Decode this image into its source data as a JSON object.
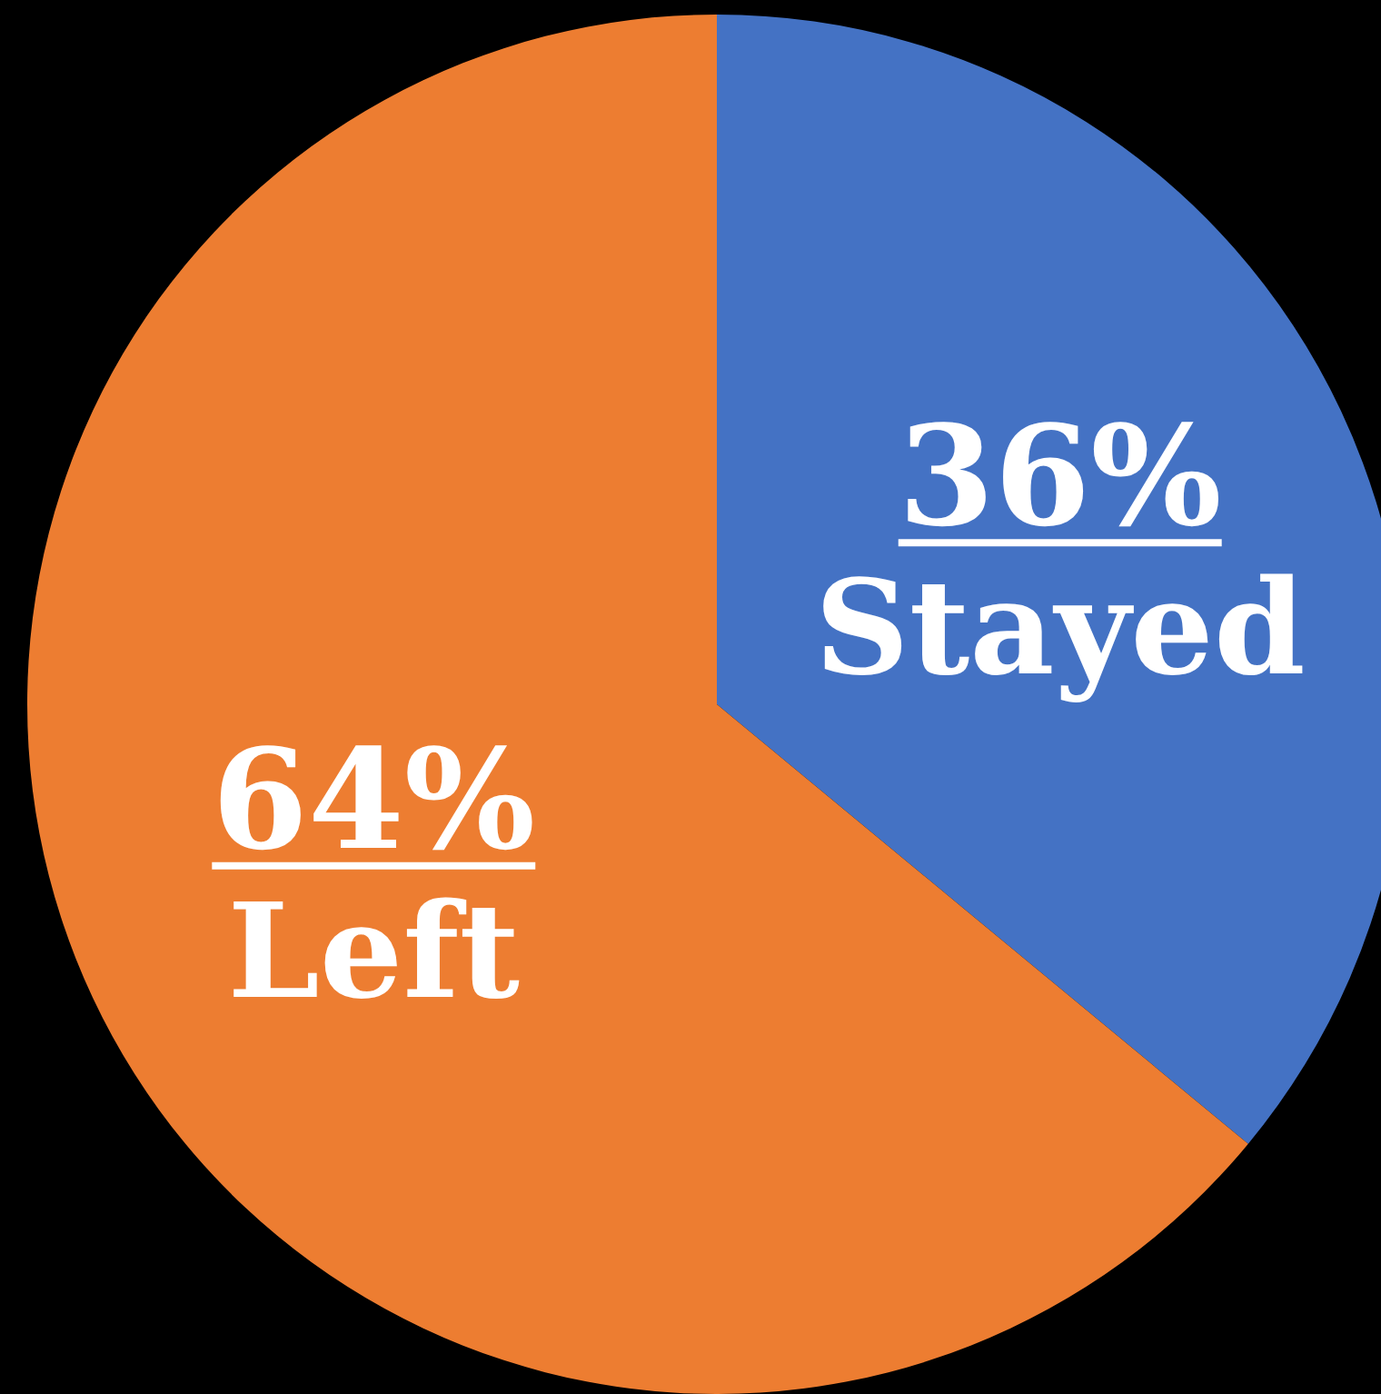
{
  "chart_data": {
    "type": "pie",
    "categories": [
      "Stayed",
      "Left"
    ],
    "values": [
      36,
      64
    ],
    "colors": [
      "#4472c4",
      "#ed7d31"
    ],
    "value_labels": [
      "36%",
      "64%"
    ],
    "data_labels": true,
    "legend": false
  }
}
